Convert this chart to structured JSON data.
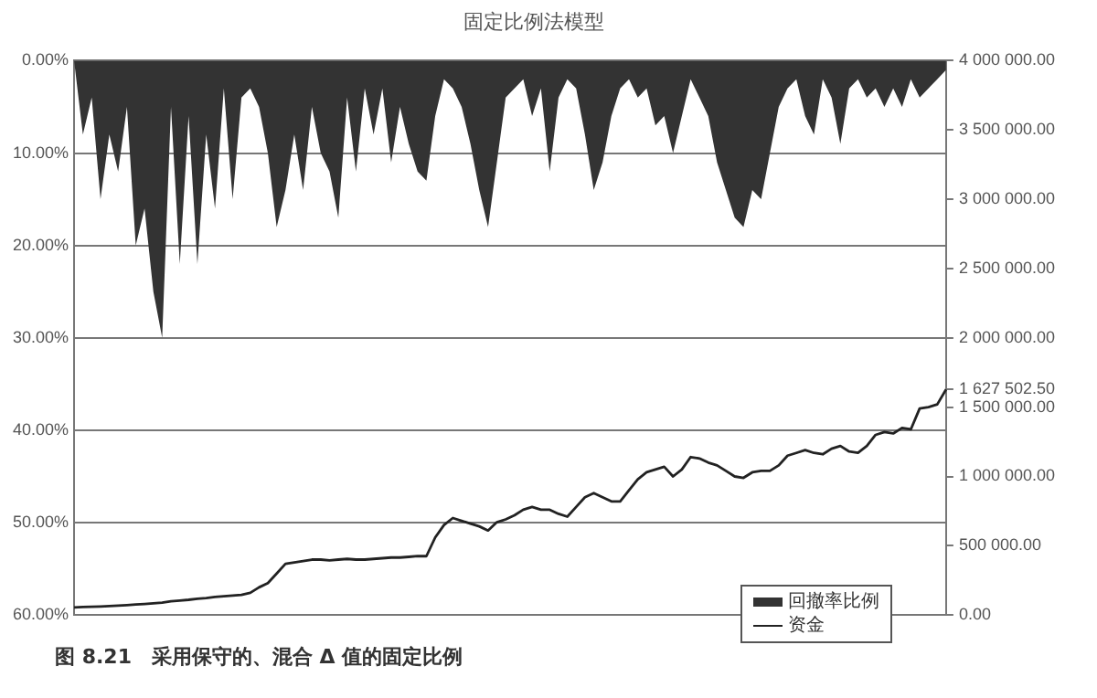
{
  "chart_data": {
    "type": "area",
    "title": "固定比例法模型",
    "categories": [
      null,
      null,
      null,
      null,
      null,
      null,
      null,
      null,
      null,
      null,
      null,
      null,
      null,
      null,
      null,
      null,
      null,
      null,
      null,
      null,
      null,
      null,
      null,
      null,
      null,
      null,
      null,
      null,
      null,
      null,
      null,
      null,
      null,
      null,
      null,
      null,
      null,
      null,
      null,
      null,
      null,
      null,
      null,
      null,
      null,
      null,
      null,
      null,
      null,
      null,
      null,
      null,
      null,
      null,
      null,
      null,
      null,
      null,
      null,
      null,
      null,
      null,
      null,
      null,
      null,
      null,
      null,
      null,
      null,
      null,
      null,
      null,
      null,
      null,
      null,
      null,
      null,
      null,
      null,
      null,
      null,
      null,
      null,
      null,
      null,
      null,
      null,
      null,
      null,
      null,
      null,
      null,
      null,
      null,
      null,
      null,
      null,
      null,
      null,
      null
    ],
    "series": [
      {
        "name": "回撤率比例",
        "color": "#333333",
        "values": [
          0,
          8,
          4,
          15,
          8,
          12,
          5,
          20,
          16,
          25,
          30,
          5,
          22,
          6,
          22,
          8,
          16,
          3,
          15,
          4,
          3,
          5,
          10,
          18,
          14,
          8,
          14,
          5,
          10,
          12,
          17,
          4,
          12,
          3,
          8,
          3,
          11,
          5,
          9,
          12,
          13,
          6,
          2,
          3,
          5,
          9,
          14,
          18,
          11,
          4,
          3,
          2,
          6,
          3,
          12,
          4,
          2,
          3,
          8,
          14,
          11,
          6,
          3,
          2,
          4,
          3,
          7,
          6,
          10,
          6,
          2,
          4,
          6,
          11,
          14,
          17,
          18,
          14,
          15,
          10,
          5,
          3,
          2,
          6,
          8,
          2,
          4,
          9,
          3,
          2,
          4,
          3,
          5,
          3,
          5,
          2,
          4,
          3,
          2,
          1
        ]
      },
      {
        "name": "资金",
        "type": "line",
        "axis": "y2",
        "color": "#222222",
        "values": [
          55000,
          58000,
          60000,
          62000,
          65000,
          68000,
          72000,
          76000,
          80000,
          85000,
          90000,
          100000,
          105000,
          110000,
          118000,
          123000,
          130000,
          135000,
          140000,
          145000,
          160000,
          200000,
          230000,
          300000,
          370000,
          380000,
          390000,
          400000,
          400000,
          395000,
          400000,
          405000,
          400000,
          400000,
          405000,
          410000,
          415000,
          415000,
          420000,
          425000,
          425000,
          560000,
          650000,
          700000,
          680000,
          660000,
          640000,
          610000,
          670000,
          690000,
          720000,
          760000,
          780000,
          760000,
          760000,
          730000,
          710000,
          780000,
          850000,
          880000,
          850000,
          820000,
          820000,
          900000,
          980000,
          1030000,
          1050000,
          1070000,
          1000000,
          1050000,
          1140000,
          1130000,
          1100000,
          1080000,
          1040000,
          1000000,
          990000,
          1030000,
          1040000,
          1040000,
          1080000,
          1150000,
          1170000,
          1190000,
          1170000,
          1160000,
          1200000,
          1220000,
          1180000,
          1170000,
          1220000,
          1300000,
          1320000,
          1310000,
          1350000,
          1340000,
          1490000,
          1500000,
          1520000,
          1627502.5
        ]
      }
    ],
    "ylim": [
      60,
      0
    ],
    "yticks": [
      {
        "value": 0,
        "label": "0.00%"
      },
      {
        "value": 10,
        "label": "10.00%"
      },
      {
        "value": 20,
        "label": "20.00%"
      },
      {
        "value": 30,
        "label": "30.00%"
      },
      {
        "value": 40,
        "label": "40.00%"
      },
      {
        "value": 50,
        "label": "50.00%"
      },
      {
        "value": 60,
        "label": "60.00%"
      }
    ],
    "y2lim": [
      0,
      4000000
    ],
    "y2ticks": [
      {
        "value": 0,
        "label": "0.00"
      },
      {
        "value": 500000,
        "label": "500 000.00"
      },
      {
        "value": 1000000,
        "label": "1 000 000.00"
      },
      {
        "value": 1500000,
        "label": "1 500 000.00"
      },
      {
        "value": 1627502.5,
        "label": "1 627 502.50"
      },
      {
        "value": 2000000,
        "label": "2 000 000.00"
      },
      {
        "value": 2500000,
        "label": "2 500 000.00"
      },
      {
        "value": 3000000,
        "label": "3 000 000.00"
      },
      {
        "value": 3500000,
        "label": "3 500 000.00"
      },
      {
        "value": 4000000,
        "label": "4 000 000.00"
      }
    ],
    "grid": "y",
    "legend": "bottom right",
    "marker": "none",
    "line_style": "solid",
    "annotations": [
      "图 8.21　采用保守的、混合 Δ 值的固定比例"
    ]
  }
}
